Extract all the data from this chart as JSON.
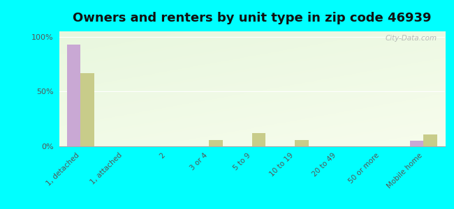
{
  "title": "Owners and renters by unit type in zip code 46939",
  "categories": [
    "1, detached",
    "1, attached",
    "2",
    "3 or 4",
    "5 to 9",
    "10 to 19",
    "20 to 49",
    "50 or more",
    "Mobile home"
  ],
  "owner_values": [
    93,
    0,
    0,
    0,
    0,
    0,
    0,
    0,
    5
  ],
  "renter_values": [
    67,
    0,
    0,
    6,
    12,
    6,
    0,
    0,
    11
  ],
  "owner_color": "#c9a8d4",
  "renter_color": "#c8cc8a",
  "background_color": "#00ffff",
  "ylabel_ticks": [
    "0%",
    "50%",
    "100%"
  ],
  "ytick_vals": [
    0,
    50,
    100
  ],
  "title_fontsize": 13,
  "watermark": "City-Data.com"
}
